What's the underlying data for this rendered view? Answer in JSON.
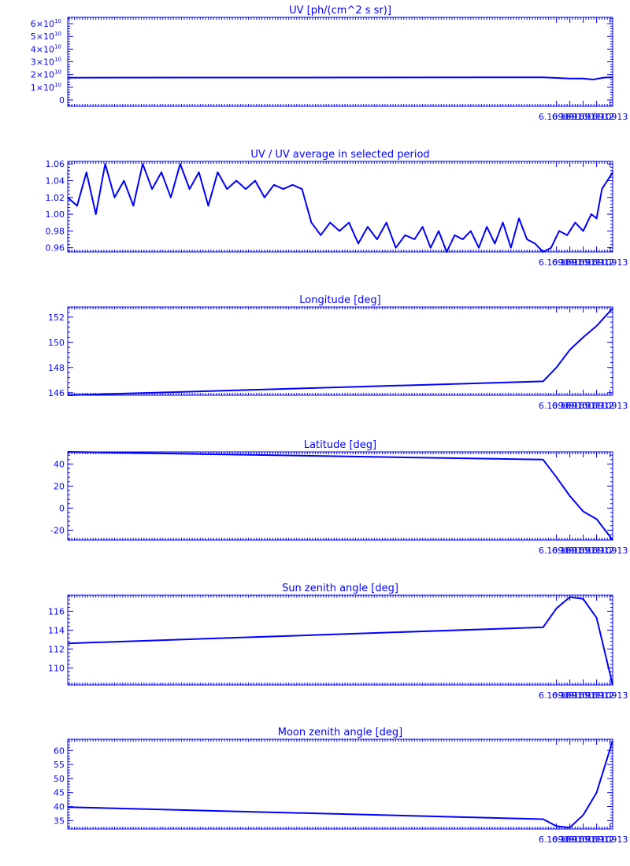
{
  "colors": {
    "plot": "#0000ff",
    "background": "#ffffff"
  },
  "chart_data": [
    {
      "type": "line",
      "title": "UV [ph/(cm^2 s sr)]",
      "xlabel": "",
      "ylabel": "",
      "xlim": [
        6.108725,
        6.109132
      ],
      "ylim": [
        -5000000000.0,
        65000000000.0
      ],
      "x_ticks": [
        {
          "value": 6.10909,
          "label": "6.10909"
        },
        {
          "value": 6.1091,
          "label": "6.10910"
        },
        {
          "value": 6.10911,
          "label": "6.10911"
        },
        {
          "value": 6.10912,
          "label": "6.10912"
        },
        {
          "value": 6.10913,
          "label": "6.10913"
        }
      ],
      "y_ticks": [
        {
          "value": 0,
          "mant": "0",
          "exp": ""
        },
        {
          "value": 10000000000.0,
          "mant": "1×10",
          "exp": "10"
        },
        {
          "value": 20000000000.0,
          "mant": "2×10",
          "exp": "10"
        },
        {
          "value": 30000000000.0,
          "mant": "3×10",
          "exp": "10"
        },
        {
          "value": 40000000000.0,
          "mant": "4×10",
          "exp": "10"
        },
        {
          "value": 50000000000.0,
          "mant": "5×10",
          "exp": "10"
        },
        {
          "value": 60000000000.0,
          "mant": "6×10",
          "exp": "10"
        }
      ],
      "series": [
        {
          "x": [
            6.108725,
            6.10908,
            6.1091,
            6.10911,
            6.109118,
            6.10912,
            6.109126,
            6.109132
          ],
          "y": [
            17500000000.0,
            17800000000.0,
            16800000000.0,
            16800000000.0,
            16000000000.0,
            16600000000.0,
            17600000000.0,
            17800000000.0
          ]
        }
      ]
    },
    {
      "type": "line",
      "title": "UV / UV average in selected period",
      "xlabel": "",
      "ylabel": "",
      "xlim": [
        6.108725,
        6.109132
      ],
      "ylim": [
        0.955,
        1.063
      ],
      "x_ticks": [
        {
          "value": 6.10909,
          "label": "6.10909"
        },
        {
          "value": 6.1091,
          "label": "6.10910"
        },
        {
          "value": 6.10911,
          "label": "6.10911"
        },
        {
          "value": 6.10912,
          "label": "6.10912"
        },
        {
          "value": 6.10913,
          "label": "6.10913"
        }
      ],
      "y_ticks": [
        {
          "value": 0.96,
          "label": "0.96"
        },
        {
          "value": 0.98,
          "label": "0.98"
        },
        {
          "value": 1.0,
          "label": "1.00"
        },
        {
          "value": 1.02,
          "label": "1.02"
        },
        {
          "value": 1.04,
          "label": "1.04"
        },
        {
          "value": 1.06,
          "label": "1.06"
        }
      ],
      "series": [
        {
          "x": [
            6.108725,
            6.108732,
            6.108739,
            6.108746,
            6.108753,
            6.10876,
            6.108767,
            6.108774,
            6.108781,
            6.108788,
            6.108795,
            6.108802,
            6.108809,
            6.108816,
            6.108823,
            6.10883,
            6.108837,
            6.108844,
            6.108851,
            6.108858,
            6.108865,
            6.108872,
            6.108879,
            6.108886,
            6.108893,
            6.1089,
            6.108907,
            6.108914,
            6.108921,
            6.108928,
            6.108935,
            6.108942,
            6.108949,
            6.108956,
            6.108963,
            6.10897,
            6.108977,
            6.108984,
            6.10899,
            6.108996,
            6.109002,
            6.109008,
            6.109014,
            6.10902,
            6.109026,
            6.109032,
            6.109038,
            6.109044,
            6.10905,
            6.109056,
            6.109062,
            6.109068,
            6.109074,
            6.10908,
            6.109086,
            6.109092,
            6.109098,
            6.109104,
            6.10911,
            6.109116,
            6.10912,
            6.109124,
            6.109128,
            6.109132
          ],
          "y": [
            1.02,
            1.01,
            1.05,
            1.0,
            1.06,
            1.02,
            1.04,
            1.01,
            1.06,
            1.03,
            1.05,
            1.02,
            1.06,
            1.03,
            1.05,
            1.01,
            1.05,
            1.03,
            1.04,
            1.03,
            1.04,
            1.02,
            1.035,
            1.03,
            1.035,
            1.03,
            0.99,
            0.975,
            0.99,
            0.98,
            0.99,
            0.965,
            0.985,
            0.97,
            0.99,
            0.96,
            0.975,
            0.97,
            0.985,
            0.96,
            0.98,
            0.955,
            0.975,
            0.97,
            0.98,
            0.96,
            0.985,
            0.965,
            0.99,
            0.96,
            0.995,
            0.97,
            0.965,
            0.955,
            0.96,
            0.98,
            0.975,
            0.99,
            0.98,
            1.0,
            0.995,
            1.03,
            1.04,
            1.05
          ]
        }
      ]
    },
    {
      "type": "line",
      "title": "Longitude [deg]",
      "xlabel": "",
      "ylabel": "",
      "xlim": [
        6.108725,
        6.109132
      ],
      "ylim": [
        145.8,
        152.8
      ],
      "x_ticks": [
        {
          "value": 6.10909,
          "label": "6.10909"
        },
        {
          "value": 6.1091,
          "label": "6.10910"
        },
        {
          "value": 6.10911,
          "label": "6.10911"
        },
        {
          "value": 6.10912,
          "label": "6.10912"
        },
        {
          "value": 6.10913,
          "label": "6.10913"
        }
      ],
      "y_ticks": [
        {
          "value": 146,
          "label": "146"
        },
        {
          "value": 148,
          "label": "148"
        },
        {
          "value": 150,
          "label": "150"
        },
        {
          "value": 152,
          "label": "152"
        }
      ],
      "series": [
        {
          "x": [
            6.108725,
            6.10908,
            6.10909,
            6.1091,
            6.10911,
            6.10912,
            6.109132
          ],
          "y": [
            145.8,
            146.9,
            148.0,
            149.4,
            150.4,
            151.3,
            152.7
          ]
        }
      ]
    },
    {
      "type": "line",
      "title": "Latitude [deg]",
      "xlabel": "",
      "ylabel": "",
      "xlim": [
        6.108725,
        6.109132
      ],
      "ylim": [
        -29,
        51
      ],
      "x_ticks": [
        {
          "value": 6.10909,
          "label": "6.10909"
        },
        {
          "value": 6.1091,
          "label": "6.10910"
        },
        {
          "value": 6.10911,
          "label": "6.10911"
        },
        {
          "value": 6.10912,
          "label": "6.10912"
        },
        {
          "value": 6.10913,
          "label": "6.10913"
        }
      ],
      "y_ticks": [
        {
          "value": -20,
          "label": "-20"
        },
        {
          "value": 0,
          "label": "0"
        },
        {
          "value": 20,
          "label": "20"
        },
        {
          "value": 40,
          "label": "40"
        }
      ],
      "series": [
        {
          "x": [
            6.108725,
            6.10908,
            6.10909,
            6.1091,
            6.10911,
            6.10912,
            6.109132
          ],
          "y": [
            51,
            44,
            28,
            11,
            -3,
            -10,
            -29
          ]
        }
      ]
    },
    {
      "type": "line",
      "title": "Sun zenith angle [deg]",
      "xlabel": "",
      "ylabel": "",
      "xlim": [
        6.108725,
        6.109132
      ],
      "ylim": [
        108.2,
        117.7
      ],
      "x_ticks": [
        {
          "value": 6.10909,
          "label": "6.10909"
        },
        {
          "value": 6.1091,
          "label": "6.10910"
        },
        {
          "value": 6.10911,
          "label": "6.10911"
        },
        {
          "value": 6.10912,
          "label": "6.10912"
        },
        {
          "value": 6.10913,
          "label": "6.10913"
        }
      ],
      "y_ticks": [
        {
          "value": 110,
          "label": "110"
        },
        {
          "value": 112,
          "label": "112"
        },
        {
          "value": 114,
          "label": "114"
        },
        {
          "value": 116,
          "label": "116"
        }
      ],
      "series": [
        {
          "x": [
            6.108725,
            6.10908,
            6.10909,
            6.1091,
            6.10911,
            6.10912,
            6.109132
          ],
          "y": [
            112.6,
            114.3,
            116.3,
            117.5,
            117.3,
            115.3,
            108.2
          ]
        }
      ]
    },
    {
      "type": "line",
      "title": "Moon zenith angle [deg]",
      "xlabel": "",
      "ylabel": "",
      "xlim": [
        6.108725,
        6.109132
      ],
      "ylim": [
        32,
        64
      ],
      "x_ticks": [
        {
          "value": 6.10909,
          "label": "6.10909"
        },
        {
          "value": 6.1091,
          "label": "6.10910"
        },
        {
          "value": 6.10911,
          "label": "6.10911"
        },
        {
          "value": 6.10912,
          "label": "6.10912"
        },
        {
          "value": 6.10913,
          "label": "6.10913"
        }
      ],
      "y_ticks": [
        {
          "value": 35,
          "label": "35"
        },
        {
          "value": 40,
          "label": "40"
        },
        {
          "value": 45,
          "label": "45"
        },
        {
          "value": 50,
          "label": "50"
        },
        {
          "value": 55,
          "label": "55"
        },
        {
          "value": 60,
          "label": "60"
        }
      ],
      "series": [
        {
          "x": [
            6.108725,
            6.10908,
            6.10909,
            6.1091,
            6.10911,
            6.10912,
            6.109132
          ],
          "y": [
            39.8,
            35.5,
            33.0,
            32.5,
            37.0,
            45.0,
            63.5
          ]
        }
      ]
    }
  ]
}
